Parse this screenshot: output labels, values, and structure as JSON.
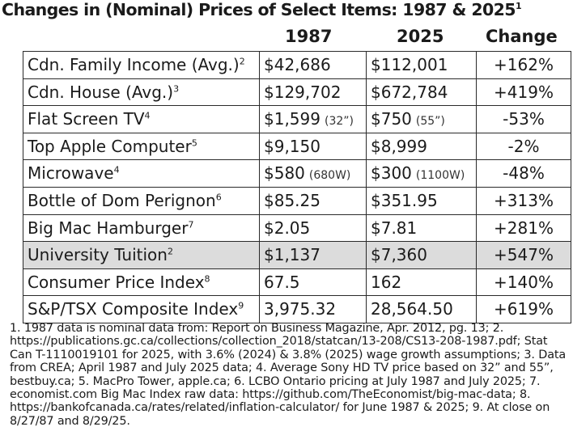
{
  "title": {
    "text": "Changes in (Nominal) Prices of Select Items: 1987 & 2025",
    "sup": "1"
  },
  "columns": {
    "year1": "1987",
    "year2": "2025",
    "change": "Change"
  },
  "rows": [
    {
      "item": "Cdn. Family Income (Avg.)",
      "sup": "2",
      "v1987": "$42,686",
      "n1987": "",
      "v2025": "$112,001",
      "n2025": "",
      "change": "+162%"
    },
    {
      "item": "Cdn. House (Avg.)",
      "sup": "3",
      "v1987": "$129,702",
      "n1987": "",
      "v2025": "$672,784",
      "n2025": "",
      "change": "+419%"
    },
    {
      "item": "Flat Screen TV",
      "sup": "4",
      "v1987": "$1,599",
      "n1987": "(32”)",
      "v2025": "$750",
      "n2025": "(55”)",
      "change": "-53%"
    },
    {
      "item": "Top Apple Computer",
      "sup": "5",
      "v1987": "$9,150",
      "n1987": "",
      "v2025": "$8,999",
      "n2025": "",
      "change": "-2%"
    },
    {
      "item": "Microwave",
      "sup": "4",
      "v1987": "$580",
      "n1987": "(680W)",
      "v2025": "$300",
      "n2025": "(1100W)",
      "change": "-48%"
    },
    {
      "item": "Bottle of Dom Perignon",
      "sup": "6",
      "v1987": "$85.25",
      "n1987": "",
      "v2025": "$351.95",
      "n2025": "",
      "change": "+313%"
    },
    {
      "item": "Big Mac Hamburger",
      "sup": "7",
      "v1987": "$2.05",
      "n1987": "",
      "v2025": "$7.81",
      "n2025": "",
      "change": "+281%"
    },
    {
      "item": "University Tuition",
      "sup": "2",
      "v1987": "$1,137",
      "n1987": "",
      "v2025": "$7,360",
      "n2025": "",
      "change": "+547%",
      "highlight": true
    },
    {
      "item": "Consumer Price Index",
      "sup": "8",
      "v1987": "67.5",
      "n1987": "",
      "v2025": "162",
      "n2025": "",
      "change": "+140%"
    },
    {
      "item": "S&P/TSX Composite Index",
      "sup": "9",
      "v1987": "3,975.32",
      "n1987": "",
      "v2025": "28,564.50",
      "n2025": "",
      "change": "+619%"
    }
  ],
  "footnotes": "1. 1987 data is nominal data from: Report on Business Magazine, Apr. 2012, pg. 13; 2. https://publications.gc.ca/collections/collection_2018/statcan/13-208/CS13-208-1987.pdf; Stat Can T-1110019101 for 2025, with 3.6% (2024) & 3.8% (2025) wage growth assumptions; 3. Data from CREA; April 1987 and July 2025 data; 4. Average Sony HD TV price based on 32” and 55”, bestbuy.ca; 5. MacPro Tower, apple.ca; 6. LCBO Ontario pricing at July 1987 and July 2025; 7. economist.com Big Mac Index raw data: https://github.com/TheEconomist/big-mac-data; 8. https://bankofcanada.ca/rates/related/inflation-calculator/ for June 1987 & 2025; 9. At close on 8/27/87 and 8/29/25."
}
